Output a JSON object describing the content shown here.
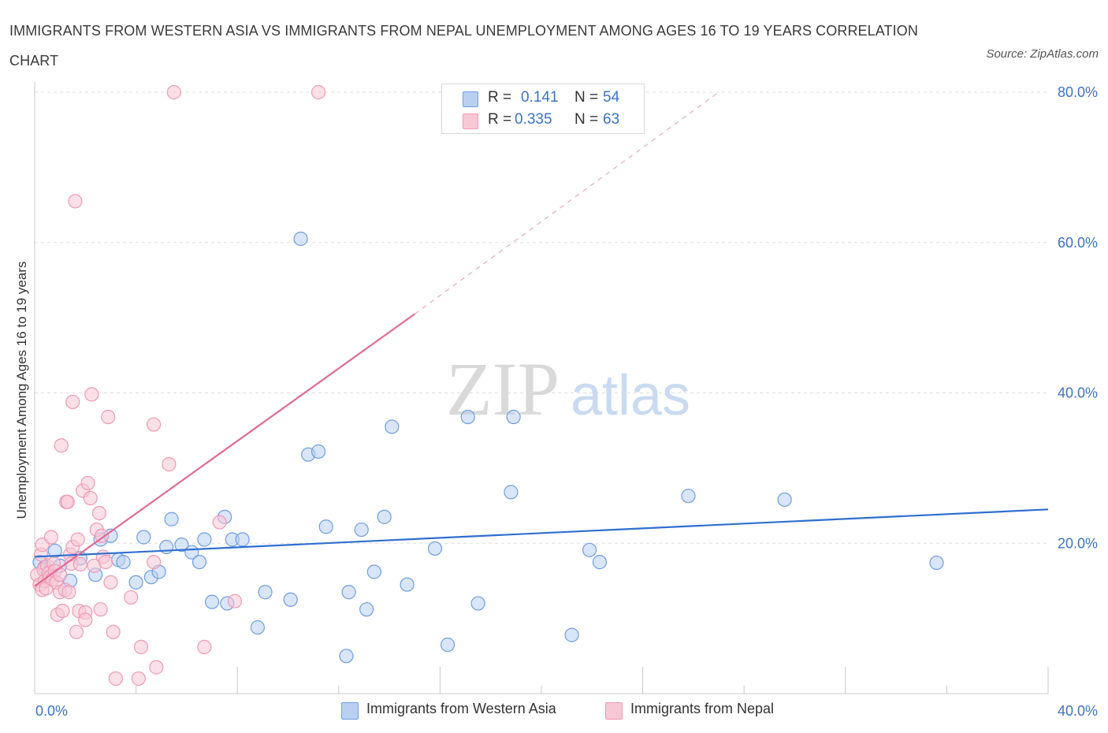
{
  "title": "IMMIGRANTS FROM WESTERN ASIA VS IMMIGRANTS FROM NEPAL UNEMPLOYMENT AMONG AGES 16 TO 19 YEARS CORRELATION CHART",
  "source": "Source: ZipAtlas.com",
  "watermark": {
    "zip": "ZIP",
    "atlas": "atlas"
  },
  "legend": {
    "rows": [
      {
        "r_label": "R =",
        "r_value": "0.141",
        "n_label": "N =",
        "n_value": "54"
      },
      {
        "r_label": "R =",
        "r_value": "0.335",
        "n_label": "N =",
        "n_value": "63"
      }
    ]
  },
  "colors": {
    "blue": "#6f9ee0",
    "blue_fill": "#b9d0f3",
    "blue_line": "#2f6fd0",
    "pink": "#ee9ab4",
    "pink_fill": "#f8c7d6",
    "pink_line": "#e06a93",
    "grid": "#dddddd",
    "tick_text": "#3b73c4"
  },
  "chart_data": {
    "type": "scatter",
    "title": "IMMIGRANTS FROM WESTERN ASIA VS IMMIGRANTS FROM NEPAL UNEMPLOYMENT AMONG AGES 16 TO 19 YEARS CORRELATION CHART",
    "xlabel": "",
    "ylabel": "Unemployment Among Ages 16 to 19 years",
    "xlim": [
      0,
      40
    ],
    "ylim": [
      0,
      80
    ],
    "x_tick_labels": [
      "0.0%",
      "40.0%"
    ],
    "y_tick_labels": [
      {
        "value": 20,
        "label": "20.0%"
      },
      {
        "value": 40,
        "label": "40.0%"
      },
      {
        "value": 60,
        "label": "60.0%"
      },
      {
        "value": 80,
        "label": "80.0%"
      }
    ],
    "legend_position": "top-center",
    "series": [
      {
        "name": "Immigrants from Western Asia",
        "color": "blue",
        "R": 0.141,
        "N": 54,
        "trend": {
          "x0": 0,
          "y0": 18.2,
          "x1": 40,
          "y1": 24.5,
          "dashed_extension": false
        },
        "points": [
          [
            0.2,
            17.5
          ],
          [
            0.4,
            16.8
          ],
          [
            0.6,
            16.2
          ],
          [
            0.8,
            19.0
          ],
          [
            1.0,
            17.0
          ],
          [
            1.4,
            15.0
          ],
          [
            1.8,
            18.0
          ],
          [
            2.4,
            15.8
          ],
          [
            2.6,
            20.5
          ],
          [
            3.0,
            21.0
          ],
          [
            3.3,
            17.8
          ],
          [
            3.5,
            17.5
          ],
          [
            4.0,
            14.8
          ],
          [
            4.3,
            20.8
          ],
          [
            4.6,
            15.5
          ],
          [
            4.9,
            16.2
          ],
          [
            5.2,
            19.5
          ],
          [
            5.4,
            23.2
          ],
          [
            5.8,
            19.8
          ],
          [
            6.2,
            18.8
          ],
          [
            6.5,
            17.5
          ],
          [
            6.7,
            20.5
          ],
          [
            7.0,
            12.2
          ],
          [
            7.5,
            23.5
          ],
          [
            7.6,
            12.0
          ],
          [
            7.8,
            20.5
          ],
          [
            8.2,
            20.5
          ],
          [
            8.8,
            8.8
          ],
          [
            9.1,
            13.5
          ],
          [
            10.1,
            12.5
          ],
          [
            10.5,
            60.5
          ],
          [
            10.8,
            31.8
          ],
          [
            11.2,
            32.2
          ],
          [
            11.5,
            22.2
          ],
          [
            12.3,
            5.0
          ],
          [
            12.4,
            13.5
          ],
          [
            12.9,
            21.8
          ],
          [
            13.1,
            11.2
          ],
          [
            13.4,
            16.2
          ],
          [
            13.8,
            23.5
          ],
          [
            14.1,
            35.5
          ],
          [
            14.7,
            14.5
          ],
          [
            15.8,
            19.3
          ],
          [
            16.3,
            6.5
          ],
          [
            17.1,
            36.8
          ],
          [
            17.5,
            12.0
          ],
          [
            18.8,
            26.8
          ],
          [
            18.9,
            36.8
          ],
          [
            21.2,
            7.8
          ],
          [
            21.9,
            19.1
          ],
          [
            22.3,
            17.5
          ],
          [
            25.8,
            26.3
          ],
          [
            29.6,
            25.8
          ],
          [
            35.6,
            17.4
          ]
        ]
      },
      {
        "name": "Immigrants from Nepal",
        "color": "pink",
        "R": 0.335,
        "N": 63,
        "trend": {
          "x0": 0,
          "y0": 14.3,
          "x1": 15.0,
          "y1": 50.5,
          "dashed_to_x": 27.0,
          "dashed_to_y": 80.0
        },
        "points": [
          [
            0.1,
            15.8
          ],
          [
            0.2,
            14.5
          ],
          [
            0.25,
            18.5
          ],
          [
            0.3,
            19.8
          ],
          [
            0.3,
            13.8
          ],
          [
            0.35,
            16.5
          ],
          [
            0.4,
            15.0
          ],
          [
            0.45,
            14.0
          ],
          [
            0.5,
            17.0
          ],
          [
            0.55,
            16.0
          ],
          [
            0.6,
            15.5
          ],
          [
            0.65,
            20.8
          ],
          [
            0.7,
            15.2
          ],
          [
            0.75,
            17.3
          ],
          [
            0.8,
            16.3
          ],
          [
            0.85,
            14.8
          ],
          [
            0.9,
            10.5
          ],
          [
            1.0,
            15.8
          ],
          [
            1.0,
            13.5
          ],
          [
            1.05,
            33.0
          ],
          [
            1.1,
            11.0
          ],
          [
            1.2,
            13.8
          ],
          [
            1.25,
            25.5
          ],
          [
            1.3,
            25.5
          ],
          [
            1.35,
            13.5
          ],
          [
            1.4,
            18.5
          ],
          [
            1.45,
            17.3
          ],
          [
            1.5,
            38.8
          ],
          [
            1.5,
            19.5
          ],
          [
            1.6,
            65.5
          ],
          [
            1.65,
            8.2
          ],
          [
            1.7,
            20.5
          ],
          [
            1.75,
            11.0
          ],
          [
            1.8,
            17.2
          ],
          [
            1.9,
            27.0
          ],
          [
            2.0,
            10.8
          ],
          [
            2.0,
            9.8
          ],
          [
            2.1,
            28.0
          ],
          [
            2.2,
            26.0
          ],
          [
            2.25,
            39.8
          ],
          [
            2.35,
            17.0
          ],
          [
            2.45,
            21.8
          ],
          [
            2.55,
            24.0
          ],
          [
            2.6,
            11.2
          ],
          [
            2.65,
            21.0
          ],
          [
            2.7,
            18.2
          ],
          [
            2.8,
            17.5
          ],
          [
            2.9,
            36.8
          ],
          [
            3.0,
            14.8
          ],
          [
            3.1,
            8.2
          ],
          [
            3.2,
            2.0
          ],
          [
            3.8,
            12.8
          ],
          [
            4.1,
            2.0
          ],
          [
            4.2,
            6.2
          ],
          [
            4.7,
            35.8
          ],
          [
            4.7,
            17.5
          ],
          [
            4.8,
            3.5
          ],
          [
            5.3,
            30.5
          ],
          [
            5.5,
            80.0
          ],
          [
            6.7,
            6.2
          ],
          [
            7.3,
            22.8
          ],
          [
            7.9,
            12.3
          ],
          [
            11.2,
            80.0
          ]
        ]
      }
    ]
  }
}
